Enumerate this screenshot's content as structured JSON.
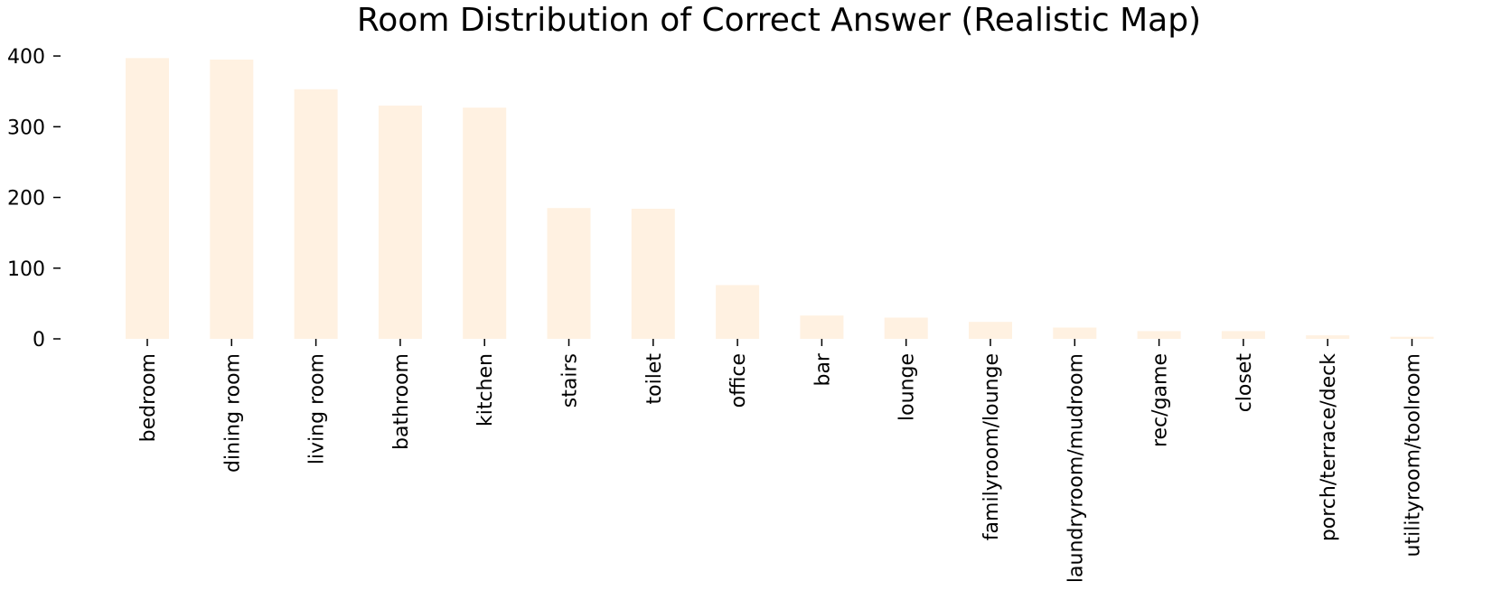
{
  "chart_data": {
    "type": "bar",
    "title": "Room Distribution of Correct Answer (Realistic Map)",
    "xlabel": "",
    "ylabel": "",
    "categories": [
      "bedroom",
      "dining room",
      "living room",
      "bathroom",
      "kitchen",
      "stairs",
      "toilet",
      "office",
      "bar",
      "lounge",
      "familyroom/lounge",
      "laundryroom/mudroom",
      "rec/game",
      "closet",
      "porch/terrace/deck",
      "utilityroom/toolroom"
    ],
    "values": [
      397,
      395,
      353,
      330,
      327,
      185,
      184,
      76,
      33,
      30,
      24,
      16,
      11,
      11,
      5,
      3
    ],
    "ylim": [
      0,
      400
    ],
    "yticks": [
      0,
      100,
      200,
      300,
      400
    ],
    "bar_color": "#fff1e1",
    "grid": false,
    "legend": "none"
  }
}
